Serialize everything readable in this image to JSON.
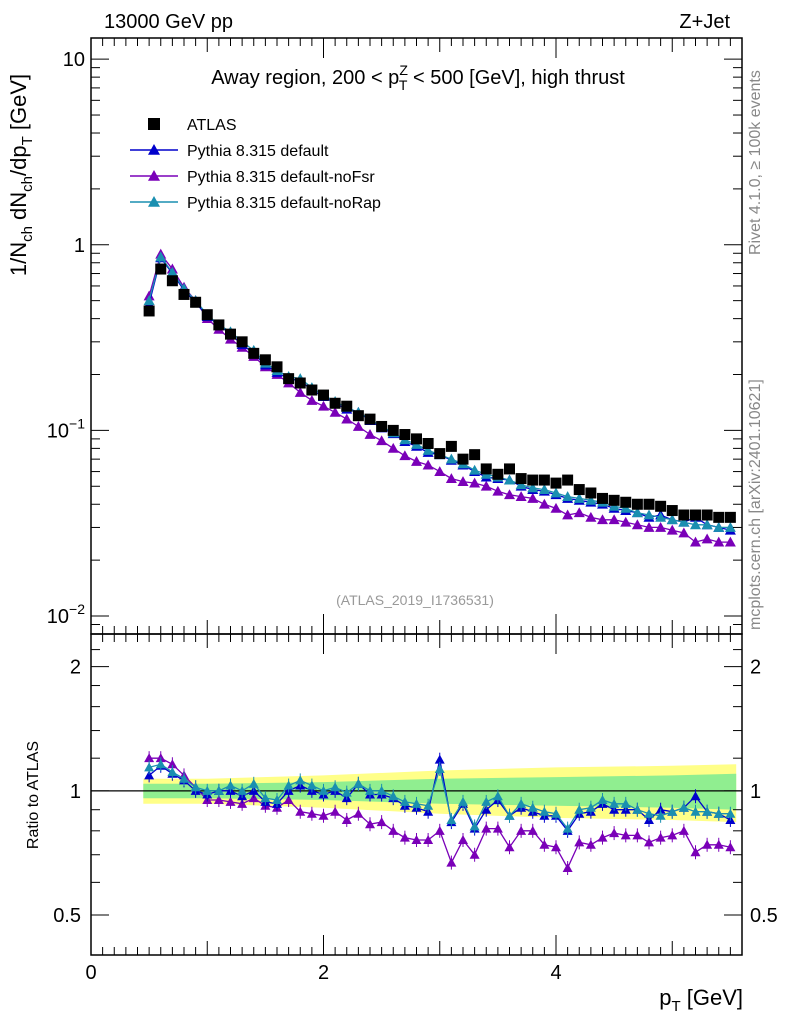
{
  "header": {
    "left_title": "13000 GeV pp",
    "right_title": "Z+Jet"
  },
  "side": {
    "rivet": "Rivet 4.1.0, ≥ 100k events",
    "mcplots": "mcplots.cern.ch [arXiv:2401.10621]"
  },
  "watermark": "(ATLAS_2019_I1736531)",
  "colors": {
    "atlas": "#000000",
    "default": "#0000cc",
    "noFsr": "#7a00b8",
    "noRap": "#1a8fb0",
    "band_inner": "#90ee90",
    "band_outer": "#ffff88"
  },
  "chart_data": [
    {
      "type": "scatter",
      "panel": "main",
      "title_parts": {
        "pre": "Away region, 200 < p",
        "sup": "Z",
        "sub": "T",
        "post": " < 500 [GeV], high thrust"
      },
      "ylabel_text": "1/N_ch dN_ch/dp_T [GeV]",
      "ylabel_parts": [
        "1/N",
        "ch",
        " dN",
        "ch",
        "/dp",
        "T",
        " [GeV]"
      ],
      "xlabel_parts": [
        "p",
        "T",
        " [GeV]"
      ],
      "yscale": "log",
      "ylim": [
        0.008,
        13
      ],
      "xlim": [
        0,
        5.6
      ],
      "y_ticks": [
        {
          "value": 10,
          "base": "10",
          "exp": ""
        },
        {
          "value": 1,
          "base": "1",
          "exp": ""
        },
        {
          "value": 0.1,
          "base": "10",
          "exp": "−1"
        },
        {
          "value": 0.01,
          "base": "10",
          "exp": "−2"
        }
      ],
      "x": [
        0.5,
        0.6,
        0.7,
        0.8,
        0.9,
        1.0,
        1.1,
        1.2,
        1.3,
        1.4,
        1.5,
        1.6,
        1.7,
        1.8,
        1.9,
        2.0,
        2.1,
        2.2,
        2.3,
        2.4,
        2.5,
        2.6,
        2.7,
        2.8,
        2.9,
        3.0,
        3.1,
        3.2,
        3.3,
        3.4,
        3.5,
        3.6,
        3.7,
        3.8,
        3.9,
        4.0,
        4.1,
        4.2,
        4.3,
        4.4,
        4.5,
        4.6,
        4.7,
        4.8,
        4.9,
        5.0,
        5.1,
        5.2,
        5.3,
        5.4,
        5.5
      ],
      "legend": [
        {
          "label": "ATLAS",
          "marker": "square",
          "color_key": "atlas"
        },
        {
          "label": "Pythia 8.315 default",
          "marker": "triangle",
          "color_key": "default"
        },
        {
          "label": "Pythia 8.315 default-noFsr",
          "marker": "triangle",
          "color_key": "noFsr"
        },
        {
          "label": "Pythia 8.315 default-noRap",
          "marker": "triangle",
          "color_key": "noRap"
        }
      ],
      "series": [
        {
          "name": "ATLAS",
          "values": [
            0.44,
            0.74,
            0.64,
            0.54,
            0.49,
            0.42,
            0.37,
            0.33,
            0.3,
            0.26,
            0.24,
            0.22,
            0.19,
            0.18,
            0.165,
            0.155,
            0.14,
            0.135,
            0.12,
            0.115,
            0.105,
            0.1,
            0.095,
            0.09,
            0.085,
            0.075,
            0.082,
            0.07,
            0.074,
            0.062,
            0.058,
            0.062,
            0.055,
            0.054,
            0.054,
            0.052,
            0.054,
            0.048,
            0.046,
            0.043,
            0.042,
            0.041,
            0.04,
            0.04,
            0.039,
            0.037,
            0.035,
            0.035,
            0.035,
            0.034,
            0.034
          ]
        },
        {
          "name": "Pythia 8.315 default",
          "values": [
            0.48,
            0.85,
            0.7,
            0.57,
            0.49,
            0.41,
            0.37,
            0.33,
            0.29,
            0.26,
            0.225,
            0.205,
            0.19,
            0.185,
            0.165,
            0.152,
            0.14,
            0.13,
            0.125,
            0.113,
            0.103,
            0.096,
            0.087,
            0.082,
            0.076,
            0.074,
            0.069,
            0.065,
            0.06,
            0.056,
            0.055,
            0.054,
            0.05,
            0.048,
            0.047,
            0.045,
            0.043,
            0.042,
            0.041,
            0.04,
            0.038,
            0.037,
            0.036,
            0.034,
            0.035,
            0.033,
            0.032,
            0.034,
            0.031,
            0.03,
            0.029
          ]
        },
        {
          "name": "Pythia 8.315 default-noFsr",
          "values": [
            0.53,
            0.89,
            0.74,
            0.59,
            0.5,
            0.4,
            0.35,
            0.31,
            0.28,
            0.25,
            0.22,
            0.2,
            0.18,
            0.16,
            0.145,
            0.135,
            0.125,
            0.115,
            0.105,
            0.095,
            0.088,
            0.08,
            0.073,
            0.068,
            0.065,
            0.06,
            0.055,
            0.053,
            0.052,
            0.05,
            0.047,
            0.045,
            0.044,
            0.043,
            0.04,
            0.038,
            0.035,
            0.036,
            0.034,
            0.033,
            0.033,
            0.032,
            0.031,
            0.03,
            0.03,
            0.029,
            0.028,
            0.025,
            0.026,
            0.025,
            0.025
          ]
        },
        {
          "name": "Pythia 8.315 default-noRap",
          "values": [
            0.5,
            0.86,
            0.71,
            0.58,
            0.5,
            0.42,
            0.37,
            0.34,
            0.3,
            0.27,
            0.23,
            0.21,
            0.195,
            0.19,
            0.17,
            0.155,
            0.143,
            0.133,
            0.125,
            0.115,
            0.105,
            0.097,
            0.089,
            0.084,
            0.078,
            0.074,
            0.07,
            0.066,
            0.061,
            0.058,
            0.056,
            0.054,
            0.051,
            0.049,
            0.048,
            0.046,
            0.044,
            0.043,
            0.042,
            0.041,
            0.039,
            0.038,
            0.036,
            0.035,
            0.034,
            0.033,
            0.032,
            0.031,
            0.031,
            0.03,
            0.03
          ]
        }
      ]
    },
    {
      "type": "scatter",
      "panel": "ratio",
      "ylabel": "Ratio to ATLAS",
      "yscale": "log",
      "ylim": [
        0.4,
        2.4
      ],
      "xlim": [
        0,
        5.6
      ],
      "reference_line": 1,
      "y_ticks": [
        {
          "value": 2,
          "label": "2"
        },
        {
          "value": 1,
          "label": "1"
        },
        {
          "value": 0.5,
          "label": "0.5"
        }
      ],
      "x_ticks": [
        {
          "value": 0,
          "label": "0"
        },
        {
          "value": 2,
          "label": "2"
        },
        {
          "value": 4,
          "label": "4"
        }
      ],
      "band_inner": {
        "x": [
          0.45,
          1.0,
          2.0,
          3.0,
          4.0,
          5.0,
          5.55
        ],
        "lo": [
          0.96,
          0.96,
          0.95,
          0.93,
          0.92,
          0.91,
          0.9
        ],
        "hi": [
          1.04,
          1.04,
          1.05,
          1.07,
          1.08,
          1.09,
          1.1
        ]
      },
      "band_outer": {
        "x": [
          0.45,
          1.0,
          2.0,
          3.0,
          4.0,
          5.0,
          5.55
        ],
        "lo": [
          0.93,
          0.93,
          0.91,
          0.88,
          0.86,
          0.85,
          0.84
        ],
        "hi": [
          1.07,
          1.07,
          1.09,
          1.12,
          1.14,
          1.15,
          1.16
        ]
      },
      "series": [
        {
          "name": "Pythia 8.315 default",
          "values": [
            1.09,
            1.15,
            1.1,
            1.06,
            1.0,
            0.98,
            1.0,
            1.0,
            0.97,
            1.0,
            0.94,
            0.93,
            1.0,
            1.03,
            1.0,
            0.98,
            1.0,
            0.96,
            1.04,
            0.98,
            0.98,
            0.96,
            0.92,
            0.91,
            0.89,
            1.19,
            0.84,
            0.93,
            0.81,
            0.9,
            0.95,
            0.87,
            0.91,
            0.89,
            0.87,
            0.87,
            0.8,
            0.88,
            0.89,
            0.93,
            0.9,
            0.9,
            0.9,
            0.85,
            0.9,
            0.89,
            0.91,
            0.97,
            0.89,
            0.88,
            0.85
          ]
        },
        {
          "name": "Pythia 8.315 default-noFsr",
          "values": [
            1.2,
            1.2,
            1.16,
            1.09,
            1.02,
            0.95,
            0.95,
            0.94,
            0.93,
            0.96,
            0.92,
            0.91,
            0.95,
            0.89,
            0.88,
            0.87,
            0.89,
            0.85,
            0.88,
            0.83,
            0.84,
            0.8,
            0.77,
            0.76,
            0.76,
            0.8,
            0.67,
            0.76,
            0.7,
            0.81,
            0.81,
            0.73,
            0.8,
            0.8,
            0.74,
            0.73,
            0.65,
            0.75,
            0.74,
            0.77,
            0.79,
            0.78,
            0.78,
            0.75,
            0.77,
            0.78,
            0.8,
            0.71,
            0.74,
            0.74,
            0.73
          ]
        },
        {
          "name": "Pythia 8.315 default-noRap",
          "values": [
            1.14,
            1.16,
            1.11,
            1.07,
            1.02,
            1.0,
            1.0,
            1.03,
            1.0,
            1.04,
            0.96,
            0.95,
            1.03,
            1.06,
            1.03,
            1.0,
            1.02,
            0.99,
            1.04,
            1.0,
            1.0,
            0.97,
            0.94,
            0.93,
            0.92,
            1.13,
            0.85,
            0.94,
            0.82,
            0.94,
            0.97,
            0.87,
            0.93,
            0.91,
            0.89,
            0.88,
            0.81,
            0.9,
            0.91,
            0.95,
            0.93,
            0.93,
            0.9,
            0.88,
            0.87,
            0.89,
            0.91,
            0.89,
            0.89,
            0.88,
            0.88
          ]
        }
      ]
    }
  ]
}
